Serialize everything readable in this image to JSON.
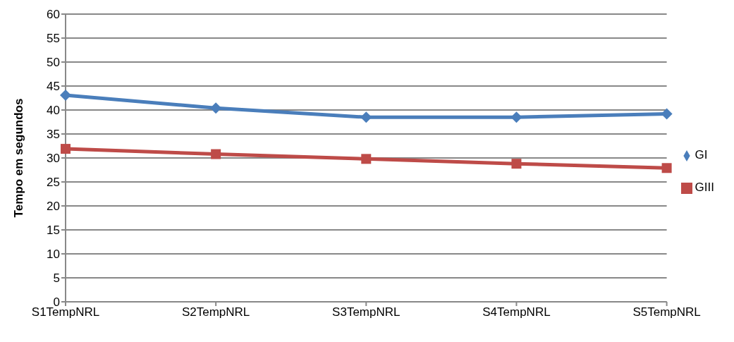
{
  "chart_data": {
    "type": "line",
    "ylabel": "Tempo em segundos",
    "categories": [
      "S1TempNRL",
      "S2TempNRL",
      "S3TempNRL",
      "S4TempNRL",
      "S5TempNRL"
    ],
    "series": [
      {
        "name": "GI",
        "color": "#4a7ebb",
        "marker": "diamond",
        "values": [
          43.1,
          40.4,
          38.5,
          38.5,
          39.2
        ]
      },
      {
        "name": "GIII",
        "color": "#be4b48",
        "marker": "square",
        "values": [
          31.9,
          30.8,
          29.8,
          28.8,
          27.9
        ]
      }
    ],
    "ylim": [
      0,
      60
    ],
    "yticks": [
      0,
      5,
      10,
      15,
      20,
      25,
      30,
      35,
      40,
      45,
      50,
      55,
      60
    ],
    "grid": "y",
    "legend": "right"
  }
}
